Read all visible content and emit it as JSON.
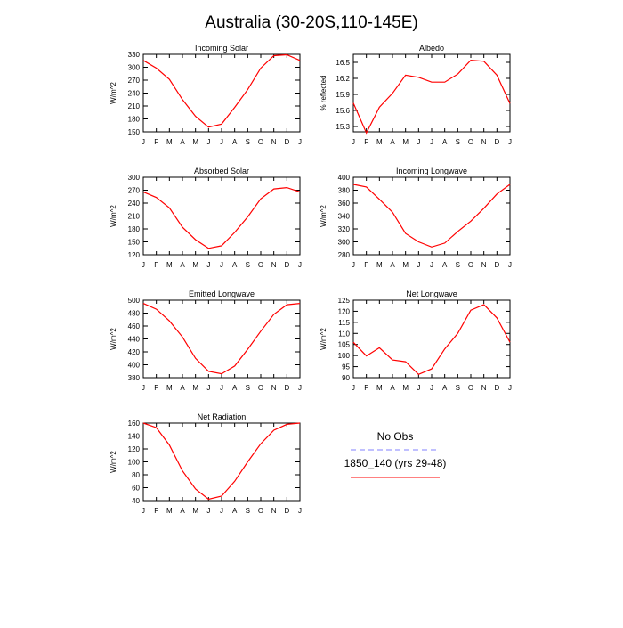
{
  "figure_title": "Australia (30-20S,110-145E)",
  "legend": {
    "entries": [
      {
        "label": "No Obs",
        "color": "#8080ff",
        "dash": "dashed"
      },
      {
        "label": "1850_140 (yrs 29-48)",
        "color": "#ff0000",
        "dash": "solid"
      }
    ]
  },
  "chart_data": [
    {
      "type": "line",
      "title": "Incoming Solar",
      "ylabel": "W/m^2",
      "x": [
        "J",
        "F",
        "M",
        "A",
        "M",
        "J",
        "J",
        "A",
        "S",
        "O",
        "N",
        "D",
        "J"
      ],
      "ylim": [
        150,
        330
      ],
      "yticks": [
        150,
        180,
        210,
        240,
        270,
        300,
        330
      ],
      "series": [
        {
          "color": "#ff0000",
          "values": [
            316,
            298,
            272,
            225,
            186,
            161,
            168,
            207,
            248,
            298,
            327,
            329,
            316
          ]
        }
      ]
    },
    {
      "type": "line",
      "title": "Albedo",
      "ylabel": "% reflected",
      "x": [
        "J",
        "F",
        "M",
        "A",
        "M",
        "J",
        "J",
        "A",
        "S",
        "O",
        "N",
        "D",
        "J"
      ],
      "ylim": [
        15.2,
        16.65
      ],
      "yticks": [
        15.3,
        15.6,
        15.9,
        16.2,
        16.5
      ],
      "series": [
        {
          "color": "#ff0000",
          "values": [
            15.74,
            15.18,
            15.66,
            15.92,
            16.26,
            16.22,
            16.13,
            16.13,
            16.28,
            16.54,
            16.52,
            16.26,
            15.73
          ]
        }
      ]
    },
    {
      "type": "line",
      "title": "Absorbed Solar",
      "ylabel": "W/m^2",
      "x": [
        "J",
        "F",
        "M",
        "A",
        "M",
        "J",
        "J",
        "A",
        "S",
        "O",
        "N",
        "D",
        "J"
      ],
      "ylim": [
        120,
        300
      ],
      "yticks": [
        120,
        150,
        180,
        210,
        240,
        270,
        300
      ],
      "series": [
        {
          "color": "#ff0000",
          "values": [
            266,
            253,
            229,
            184,
            155,
            135,
            141,
            172,
            208,
            250,
            273,
            276,
            266
          ]
        }
      ]
    },
    {
      "type": "line",
      "title": "Incoming Longwave",
      "ylabel": "W/m^2",
      "x": [
        "J",
        "F",
        "M",
        "A",
        "M",
        "J",
        "J",
        "A",
        "S",
        "O",
        "N",
        "D",
        "J"
      ],
      "ylim": [
        280,
        400
      ],
      "yticks": [
        280,
        300,
        320,
        340,
        360,
        380,
        400
      ],
      "series": [
        {
          "color": "#ff0000",
          "values": [
            389,
            385,
            366,
            346,
            313,
            300,
            292,
            298,
            316,
            332,
            352,
            374,
            389
          ]
        }
      ]
    },
    {
      "type": "line",
      "title": "Emitted Longwave",
      "ylabel": "W/m^2",
      "x": [
        "J",
        "F",
        "M",
        "A",
        "M",
        "J",
        "J",
        "A",
        "S",
        "O",
        "N",
        "D",
        "J"
      ],
      "ylim": [
        380,
        500
      ],
      "yticks": [
        380,
        400,
        420,
        440,
        460,
        480,
        500
      ],
      "series": [
        {
          "color": "#ff0000",
          "values": [
            495,
            486,
            468,
            443,
            410,
            390,
            386,
            398,
            424,
            452,
            478,
            493,
            495
          ]
        }
      ]
    },
    {
      "type": "line",
      "title": "Net Longwave",
      "ylabel": "W/m^2",
      "x": [
        "J",
        "F",
        "M",
        "A",
        "M",
        "J",
        "J",
        "A",
        "S",
        "O",
        "N",
        "D",
        "J"
      ],
      "ylim": [
        90,
        125
      ],
      "yticks": [
        90,
        95,
        100,
        105,
        110,
        115,
        120,
        125
      ],
      "series": [
        {
          "color": "#ff0000",
          "values": [
            106,
            99.8,
            103.5,
            98,
            97.2,
            91.5,
            94,
            103,
            110,
            120.5,
            123,
            117,
            106
          ]
        }
      ]
    },
    {
      "type": "line",
      "title": "Net Radiation",
      "ylabel": "W/m^2",
      "x": [
        "J",
        "F",
        "M",
        "A",
        "M",
        "J",
        "J",
        "A",
        "S",
        "O",
        "N",
        "D",
        "J"
      ],
      "ylim": [
        40,
        160
      ],
      "yticks": [
        40,
        60,
        80,
        100,
        120,
        140,
        160
      ],
      "series": [
        {
          "color": "#ff0000",
          "values": [
            160,
            153,
            126,
            86,
            58,
            42,
            47,
            70,
            100,
            128,
            149,
            158,
            160
          ]
        }
      ]
    }
  ]
}
